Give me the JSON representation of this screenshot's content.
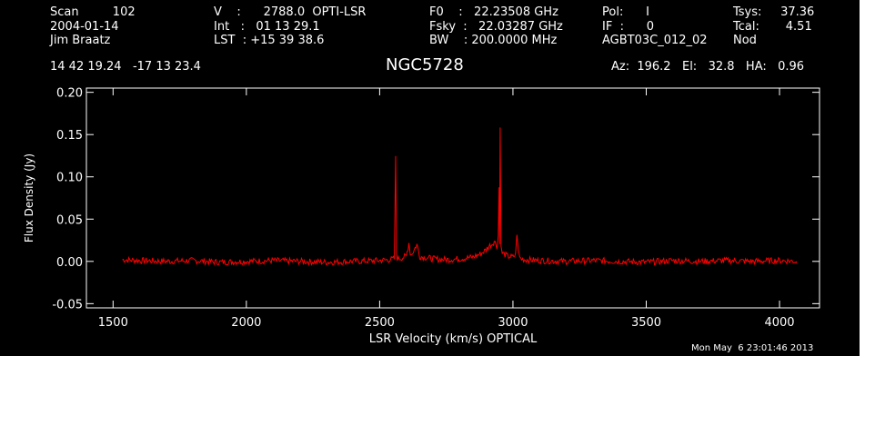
{
  "header": {
    "col1": [
      "Scan         102",
      "2004-01-14",
      "Jim Braatz"
    ],
    "col2": [
      "V    :      2788.0  OPTI-LSR",
      "Int   :   01 13 29.1",
      "LST  : +15 39 38.6"
    ],
    "col3": [
      "F0    :   22.23508 GHz",
      "Fsky  :   22.03287 GHz",
      "BW    : 200.0000 MHz"
    ],
    "col4": [
      "Pol:      I",
      "IF  :      0",
      "AGBT03C_012_02"
    ],
    "col5": [
      "Tsys:     37.36",
      "Tcal:       4.51",
      "Nod"
    ],
    "coords": "14 42 19.24   -17 13 23.4",
    "source": "NGC5728",
    "az_el_ha": "Az:  196.2   El:   32.8   HA:   0.96",
    "timestamp": "Mon May  6 23:01:46 2013"
  },
  "chart_data": {
    "type": "line",
    "title": "NGC5728",
    "xlabel": "LSR Velocity (km/s) OPTICAL",
    "ylabel": "Flux Density (Jy)",
    "xlim": [
      1400,
      4150
    ],
    "ylim": [
      -0.055,
      0.205
    ],
    "xticks": [
      1500,
      2000,
      2500,
      3000,
      3500,
      4000
    ],
    "yticks": [
      -0.05,
      0.0,
      0.05,
      0.1,
      0.15,
      0.2
    ],
    "ytick_labels": [
      "-0.05",
      "0.00",
      "0.05",
      "0.10",
      "0.15",
      "0.20"
    ],
    "grid": false,
    "series": [
      {
        "color": "#ff0000",
        "x": [
          1535,
          1600,
          1700,
          1800,
          1900,
          2000,
          2100,
          2200,
          2300,
          2400,
          2500,
          2540,
          2555,
          2560,
          2563,
          2566,
          2570,
          2580,
          2600,
          2610,
          2615,
          2620,
          2630,
          2640,
          2650,
          2700,
          2750,
          2800,
          2850,
          2880,
          2900,
          2910,
          2920,
          2930,
          2940,
          2945,
          2948,
          2950,
          2952,
          2955,
          2960,
          2970,
          2980,
          3000,
          3010,
          3015,
          3020,
          3025,
          3030,
          3050,
          3100,
          3200,
          3300,
          3400,
          3500,
          3600,
          3700,
          3800,
          3900,
          4000,
          4065
        ],
        "y": [
          0.002,
          0.001,
          0.0,
          0.001,
          -0.001,
          0.0,
          0.001,
          0.0,
          -0.001,
          0.0,
          0.001,
          0.002,
          0.003,
          0.122,
          0.01,
          0.004,
          0.003,
          0.004,
          0.006,
          0.022,
          0.01,
          0.008,
          0.014,
          0.02,
          0.006,
          0.003,
          0.002,
          0.003,
          0.005,
          0.009,
          0.014,
          0.018,
          0.02,
          0.024,
          0.018,
          0.03,
          0.088,
          0.02,
          0.162,
          0.016,
          0.01,
          0.008,
          0.006,
          0.005,
          0.008,
          0.034,
          0.012,
          0.005,
          0.003,
          0.002,
          0.001,
          0.0,
          0.001,
          0.0,
          -0.001,
          0.001,
          0.0,
          0.001,
          0.0,
          0.001,
          0.0
        ]
      }
    ]
  }
}
